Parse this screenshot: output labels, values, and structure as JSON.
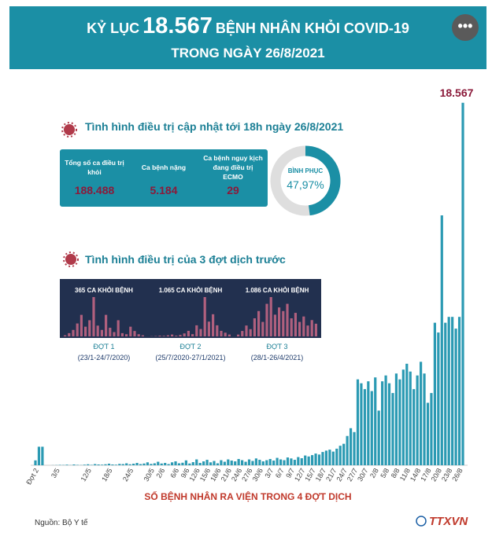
{
  "header": {
    "title_prefix": "KỶ LỤC",
    "title_number": "18.567",
    "title_suffix": "BỆNH NHÂN KHỎI COVID-19",
    "subtitle": "TRONG NGÀY 26/8/2021",
    "menu": "•••"
  },
  "summary": {
    "heading": "Tình hình điều trị cập nhật tới 18h ngày 26/8/2021",
    "table": [
      {
        "label": "Tổng số ca điều trị khỏi",
        "value": "188.488"
      },
      {
        "label": "Ca bệnh nặng",
        "value": "5.184"
      },
      {
        "label": "Ca bệnh nguy kịch đang điều trị ECMO",
        "value": "29"
      }
    ],
    "recovery": {
      "label": "BÌNH PHỤC",
      "value": 47.97,
      "value_label": "47,97%"
    }
  },
  "previous_waves": {
    "heading": "Tình hình điều trị của 3 đợt dịch trước",
    "waves": [
      {
        "peak_label": "365 CA KHỎI BỆNH",
        "name": "ĐỢT 1",
        "period": "(23/1-24/7/2020)",
        "values": [
          10,
          30,
          60,
          120,
          200,
          90,
          150,
          365,
          100,
          60,
          200,
          80,
          40,
          150,
          30,
          20,
          90,
          50,
          20,
          10
        ]
      },
      {
        "peak_label": "1.065 CA KHỎI BỆNH",
        "name": "ĐỢT 2",
        "period": "(25/7/2020-27/1/2021)",
        "values": [
          5,
          10,
          20,
          15,
          30,
          50,
          20,
          40,
          80,
          150,
          60,
          300,
          200,
          1065,
          400,
          600,
          300,
          150,
          100,
          50
        ]
      },
      {
        "peak_label": "1.086 CA KHỎI BỆNH",
        "name": "ĐỢT 3",
        "period": "(28/1-26/4/2021)",
        "values": [
          50,
          150,
          300,
          200,
          500,
          700,
          400,
          900,
          1086,
          600,
          800,
          700,
          900,
          500,
          650,
          400,
          550,
          300,
          450,
          350
        ]
      }
    ]
  },
  "chart_data": {
    "type": "bar",
    "x_label": "SỐ BỆNH NHÂN RA VIỆN TRONG 4 ĐỢT DỊCH",
    "color": "#2b9ab3",
    "label_color": "#8b1a3a",
    "ylim": [
      0,
      19000
    ],
    "categories": [
      null,
      "Đợt 2",
      null,
      null,
      null,
      null,
      null,
      "3/5",
      null,
      null,
      null,
      null,
      null,
      null,
      null,
      null,
      "12/5",
      null,
      null,
      null,
      null,
      null,
      "18/5",
      null,
      null,
      null,
      null,
      null,
      "24/5",
      null,
      null,
      null,
      null,
      null,
      "30/5",
      null,
      null,
      "2/6",
      null,
      null,
      null,
      "6/6",
      null,
      null,
      "9/6",
      null,
      null,
      "12/6",
      null,
      null,
      "15/6",
      null,
      null,
      "18/6",
      null,
      null,
      "21/6",
      null,
      null,
      "24/6",
      null,
      null,
      "27/6",
      null,
      null,
      "30/6",
      null,
      null,
      "3/7",
      null,
      null,
      "6/7",
      null,
      null,
      "9/7",
      null,
      null,
      "12/7",
      null,
      null,
      "15/7",
      null,
      null,
      "18/7",
      null,
      null,
      "21/7",
      null,
      null,
      "24/7",
      null,
      null,
      "27/7",
      null,
      null,
      "30/7",
      null,
      null,
      "2/8",
      null,
      null,
      "5/8",
      null,
      null,
      "8/8",
      null,
      null,
      "11/8",
      null,
      null,
      "14/8",
      null,
      null,
      "17/8",
      null,
      null,
      "20/8",
      null,
      null,
      "23/8",
      null,
      null,
      "26/8"
    ],
    "values": [
      250,
      950,
      950,
      0,
      0,
      5,
      10,
      20,
      15,
      30,
      10,
      40,
      20,
      10,
      30,
      50,
      20,
      60,
      40,
      30,
      50,
      80,
      40,
      30,
      70,
      60,
      100,
      50,
      80,
      120,
      60,
      90,
      150,
      70,
      100,
      180,
      90,
      120,
      60,
      150,
      200,
      100,
      130,
      250,
      90,
      160,
      300,
      120,
      200,
      280,
      150,
      220,
      100,
      260,
      180,
      300,
      240,
      200,
      320,
      260,
      180,
      300,
      220,
      350,
      280,
      200,
      260,
      320,
      240,
      380,
      300,
      260,
      400,
      350,
      280,
      420,
      360,
      500,
      450,
      520,
      600,
      550,
      680,
      750,
      800,
      700,
      850,
      1000,
      1100,
      1500,
      1900,
      1700,
      4400,
      4200,
      3900,
      4300,
      3800,
      4500,
      2800,
      4300,
      4600,
      4200,
      3700,
      4700,
      4400,
      4900,
      5200,
      4800,
      3900,
      4600,
      5300,
      4700,
      3200,
      3700,
      7300,
      6800,
      12800,
      7300,
      7600,
      7600,
      7000,
      7600,
      18567
    ],
    "value_labels": [
      null,
      null,
      null,
      null,
      null,
      null,
      null,
      null,
      null,
      null,
      null,
      null,
      null,
      null,
      null,
      null,
      null,
      null,
      null,
      null,
      null,
      null,
      null,
      null,
      null,
      null,
      null,
      null,
      null,
      null,
      null,
      null,
      null,
      null,
      null,
      null,
      null,
      null,
      null,
      null,
      null,
      null,
      null,
      null,
      null,
      null,
      null,
      null,
      null,
      null,
      null,
      null,
      null,
      null,
      null,
      null,
      null,
      null,
      null,
      null,
      null,
      null,
      null,
      null,
      null,
      null,
      null,
      null,
      null,
      null,
      null,
      null,
      null,
      null,
      null,
      null,
      null,
      null,
      null,
      null,
      null,
      null,
      null,
      null,
      null,
      null,
      null,
      null,
      null,
      null,
      null,
      null,
      null,
      null,
      null,
      null,
      null,
      null,
      null,
      null,
      null,
      null,
      null,
      null,
      null,
      null,
      null,
      null,
      null,
      null,
      null,
      null,
      null,
      null,
      null,
      null,
      null,
      null,
      null,
      null,
      null,
      null,
      "18.567"
    ]
  },
  "footer": {
    "source": "Nguồn: Bộ Y tế",
    "logo": "TTXVN"
  }
}
